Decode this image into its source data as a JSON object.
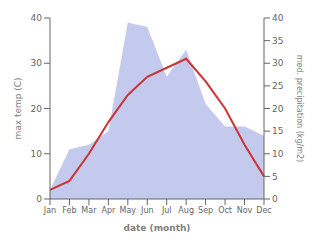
{
  "chart_data": {
    "type": "line",
    "xlabel": "date (month)",
    "ylabel": "max temp (C)",
    "y2label": "med. precipitation (kg/m2)",
    "categories": [
      "Jan",
      "Feb",
      "Mar",
      "Apr",
      "May",
      "Jun",
      "Jul",
      "Aug",
      "Sep",
      "Oct",
      "Nov",
      "Dec"
    ],
    "series": [
      {
        "type": "line",
        "color": "#cc3333",
        "values": [
          2,
          4,
          10,
          17,
          23,
          27,
          29,
          31,
          26,
          20,
          12,
          5
        ]
      },
      {
        "type": "area",
        "color": "#b0b8e8",
        "axis": "y2",
        "values": [
          2,
          11,
          12,
          15,
          39,
          38,
          27,
          33,
          21,
          16,
          16,
          14
        ]
      }
    ],
    "ylim": [
      0,
      40
    ],
    "yticks": [
      0,
      10,
      20,
      30,
      40
    ],
    "y2lim": [
      0,
      40
    ],
    "y2ticks": [
      0,
      5,
      10,
      15,
      20,
      25,
      30,
      35,
      40
    ],
    "grid": false
  }
}
